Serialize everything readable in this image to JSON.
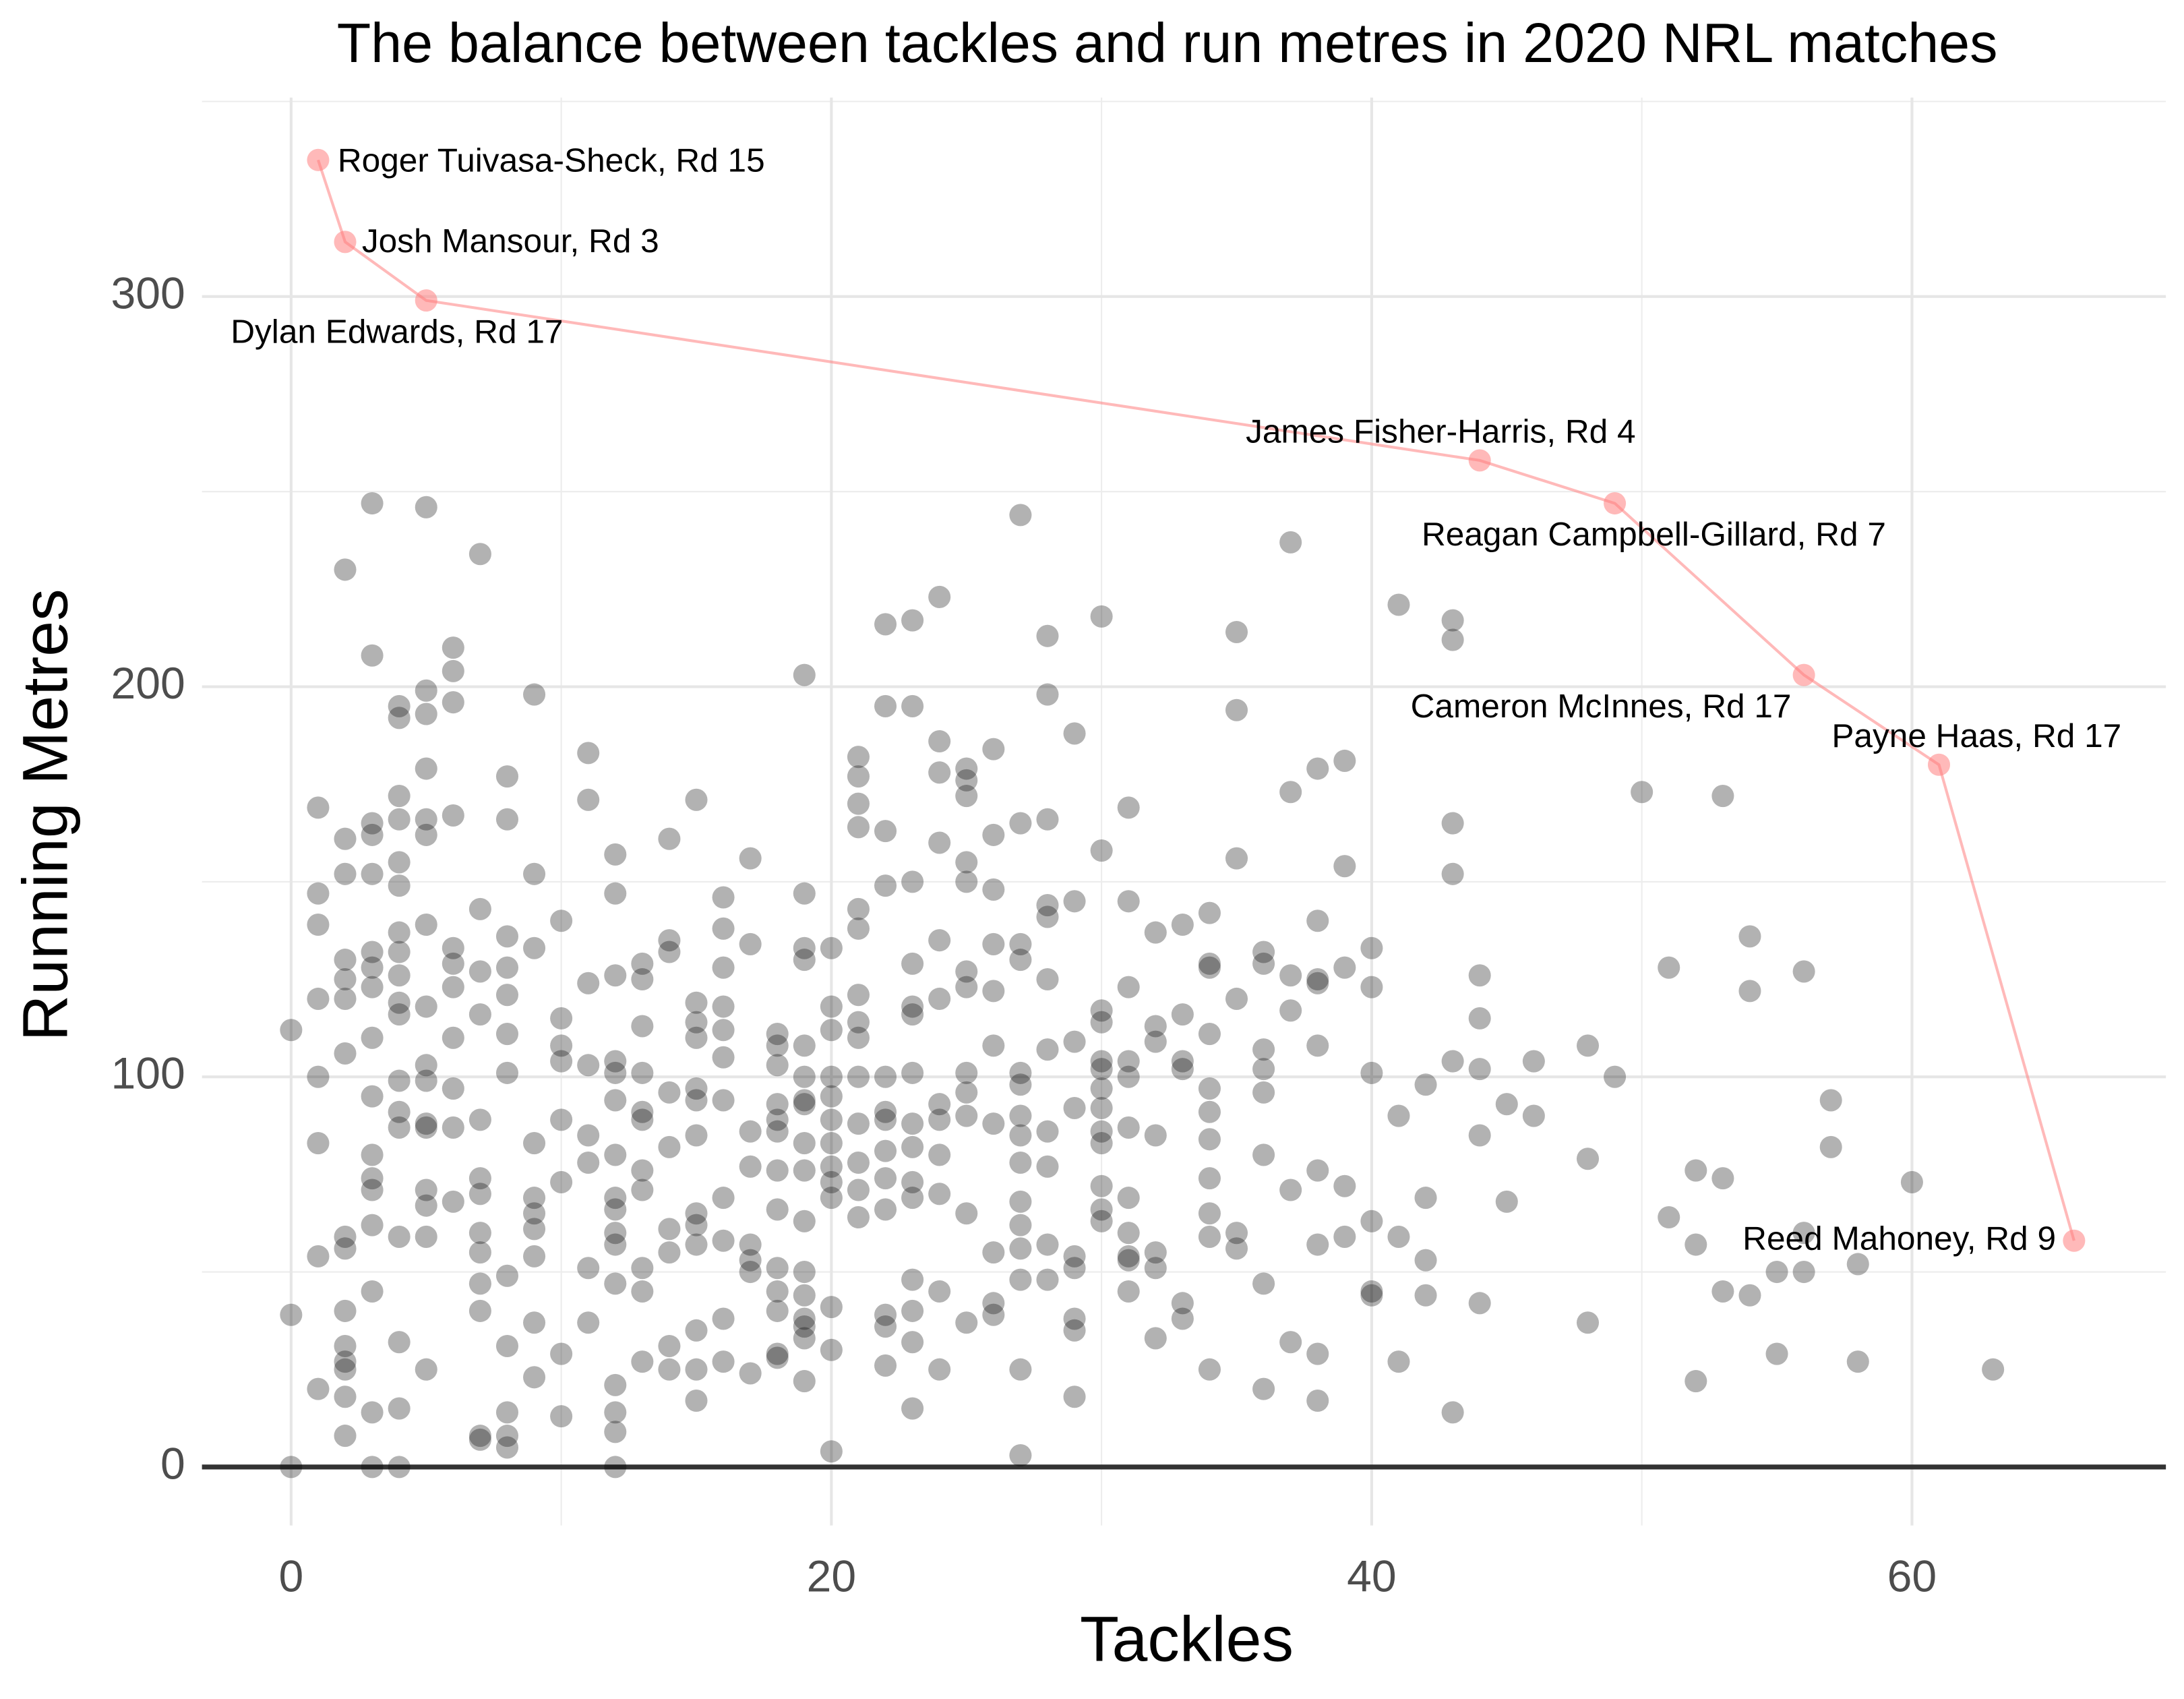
{
  "chart_data": {
    "type": "scatter",
    "title": "The balance between tackles and run metres in 2020 NRL matches",
    "x_label": "Tackles",
    "y_label": "Running Metres",
    "xlim": [
      -3.3,
      69.4
    ],
    "ylim": [
      -15,
      351
    ],
    "xticks": [
      0,
      20,
      40,
      60
    ],
    "yticks": [
      0,
      100,
      200,
      300
    ],
    "x_minor_ticks": [
      10,
      30,
      50
    ],
    "y_minor_ticks": [
      50,
      150,
      250,
      350
    ],
    "grid": true,
    "hline": 0,
    "color": "#000000",
    "x": [
      0,
      0,
      0,
      1,
      1,
      1,
      1,
      1,
      1,
      1,
      1,
      2,
      2,
      2,
      2,
      2,
      2,
      2,
      2,
      2,
      2,
      2,
      2,
      2,
      2,
      2,
      3,
      3,
      3,
      3,
      3,
      3,
      3,
      3,
      3,
      3,
      3,
      3,
      3,
      3,
      3,
      3,
      3,
      4,
      4,
      4,
      4,
      4,
      4,
      4,
      4,
      4,
      4,
      4,
      4,
      4,
      4,
      4,
      4,
      4,
      4,
      5,
      5,
      5,
      5,
      5,
      5,
      5,
      5,
      5,
      5,
      5,
      5,
      5,
      5,
      5,
      5,
      6,
      6,
      6,
      6,
      6,
      6,
      6,
      6,
      6,
      6,
      6,
      7,
      7,
      7,
      7,
      7,
      7,
      7,
      7,
      7,
      7,
      7,
      7,
      7,
      8,
      8,
      8,
      8,
      8,
      8,
      8,
      8,
      8,
      8,
      8,
      8,
      9,
      9,
      9,
      9,
      9,
      9,
      9,
      9,
      9,
      9,
      10,
      10,
      10,
      10,
      10,
      10,
      10,
      10,
      11,
      11,
      11,
      11,
      11,
      11,
      11,
      11,
      12,
      12,
      12,
      12,
      12,
      12,
      12,
      12,
      12,
      12,
      12,
      12,
      12,
      12,
      12,
      12,
      13,
      13,
      13,
      13,
      13,
      13,
      13,
      13,
      13,
      13,
      13,
      14,
      14,
      14,
      14,
      14,
      14,
      14,
      14,
      14,
      15,
      15,
      15,
      15,
      15,
      15,
      15,
      15,
      15,
      15,
      15,
      15,
      15,
      16,
      16,
      16,
      16,
      16,
      16,
      16,
      16,
      16,
      16,
      16,
      17,
      17,
      17,
      17,
      17,
      17,
      17,
      17,
      18,
      18,
      18,
      18,
      18,
      18,
      18,
      18,
      18,
      18,
      18,
      18,
      18,
      19,
      19,
      19,
      19,
      19,
      19,
      19,
      19,
      19,
      19,
      19,
      19,
      19,
      19,
      19,
      19,
      19,
      20,
      20,
      20,
      20,
      20,
      20,
      20,
      20,
      20,
      20,
      20,
      20,
      20,
      21,
      21,
      21,
      21,
      21,
      21,
      21,
      21,
      21,
      21,
      21,
      21,
      21,
      21,
      22,
      22,
      22,
      22,
      22,
      22,
      22,
      22,
      22,
      22,
      22,
      22,
      22,
      23,
      23,
      23,
      23,
      23,
      23,
      23,
      23,
      23,
      23,
      23,
      23,
      23,
      23,
      23,
      24,
      24,
      24,
      24,
      24,
      24,
      24,
      24,
      24,
      24,
      24,
      24,
      25,
      25,
      25,
      25,
      25,
      25,
      25,
      25,
      25,
      25,
      25,
      25,
      26,
      26,
      26,
      26,
      26,
      26,
      26,
      26,
      26,
      26,
      27,
      27,
      27,
      27,
      27,
      27,
      27,
      27,
      27,
      27,
      27,
      27,
      27,
      27,
      27,
      28,
      28,
      28,
      28,
      28,
      28,
      28,
      28,
      28,
      28,
      28,
      29,
      29,
      29,
      29,
      29,
      29,
      29,
      29,
      29,
      30,
      30,
      30,
      30,
      30,
      30,
      30,
      30,
      30,
      30,
      30,
      30,
      30,
      31,
      31,
      31,
      31,
      31,
      31,
      31,
      31,
      31,
      31,
      31,
      32,
      32,
      32,
      32,
      32,
      32,
      32,
      33,
      33,
      33,
      33,
      33,
      33,
      34,
      34,
      34,
      34,
      34,
      34,
      34,
      34,
      34,
      34,
      34,
      35,
      35,
      35,
      35,
      35,
      35,
      36,
      36,
      36,
      36,
      36,
      36,
      36,
      36,
      37,
      37,
      37,
      37,
      37,
      37,
      38,
      38,
      38,
      38,
      38,
      38,
      38,
      38,
      38,
      39,
      39,
      39,
      39,
      39,
      40,
      40,
      40,
      40,
      40,
      40,
      41,
      41,
      41,
      41,
      42,
      42,
      42,
      42,
      43,
      43,
      43,
      43,
      43,
      43,
      44,
      44,
      44,
      44,
      44,
      45,
      45,
      46,
      46,
      48,
      48,
      48,
      49,
      50,
      51,
      51,
      52,
      52,
      52,
      53,
      53,
      53,
      54,
      54,
      54,
      55,
      55,
      56,
      56,
      56,
      57,
      57,
      58,
      58,
      60,
      63
    ],
    "values": [
      112,
      39,
      0,
      169,
      147,
      139,
      120,
      100,
      83,
      54,
      20,
      230,
      161,
      152,
      130,
      125,
      120,
      106,
      59,
      56,
      40,
      31,
      27,
      25,
      18,
      8,
      247,
      208,
      165,
      162,
      152,
      132,
      128,
      123,
      110,
      95,
      80,
      74,
      71,
      62,
      45,
      14,
      0,
      195,
      192,
      172,
      166,
      155,
      149,
      137,
      132,
      126,
      119,
      116,
      99,
      91,
      87,
      59,
      32,
      15,
      0,
      246,
      199,
      193,
      179,
      166,
      162,
      139,
      118,
      103,
      99,
      88,
      87,
      71,
      67,
      59,
      25,
      210,
      204,
      196,
      167,
      133,
      129,
      123,
      110,
      97,
      87,
      68,
      234,
      143,
      127,
      116,
      89,
      74,
      70,
      60,
      55,
      47,
      40,
      8,
      7,
      177,
      166,
      136,
      128,
      121,
      111,
      101,
      49,
      31,
      14,
      8,
      5,
      198,
      152,
      133,
      83,
      69,
      65,
      61,
      54,
      37,
      23,
      140,
      115,
      108,
      104,
      89,
      73,
      29,
      13,
      183,
      171,
      124,
      103,
      85,
      78,
      51,
      37,
      157,
      147,
      126,
      104,
      101,
      94,
      80,
      69,
      66,
      60,
      57,
      47,
      21,
      14,
      9,
      0,
      129,
      125,
      113,
      101,
      91,
      89,
      76,
      71,
      51,
      45,
      27,
      161,
      135,
      132,
      96,
      82,
      61,
      55,
      31,
      25,
      171,
      119,
      114,
      110,
      97,
      94,
      85,
      65,
      62,
      57,
      35,
      25,
      17,
      146,
      138,
      128,
      118,
      112,
      105,
      94,
      69,
      58,
      38,
      27,
      156,
      134,
      86,
      77,
      57,
      53,
      50,
      24,
      111,
      108,
      103,
      93,
      89,
      86,
      76,
      66,
      51,
      45,
      40,
      29,
      28,
      203,
      147,
      133,
      130,
      108,
      100,
      94,
      93,
      83,
      76,
      63,
      50,
      44,
      38,
      36,
      33,
      22,
      133,
      118,
      112,
      100,
      95,
      89,
      83,
      77,
      73,
      69,
      41,
      30,
      4,
      182,
      177,
      170,
      164,
      143,
      138,
      121,
      114,
      110,
      100,
      88,
      78,
      71,
      64,
      216,
      195,
      163,
      149,
      100,
      91,
      89,
      81,
      74,
      66,
      39,
      36,
      26,
      217,
      195,
      150,
      129,
      118,
      116,
      101,
      88,
      82,
      73,
      69,
      48,
      40,
      32,
      15,
      223,
      186,
      178,
      160,
      135,
      120,
      93,
      89,
      80,
      70,
      45,
      25,
      179,
      176,
      172,
      155,
      150,
      127,
      123,
      101,
      96,
      90,
      65,
      37,
      184,
      162,
      148,
      134,
      122,
      108,
      88,
      55,
      42,
      39,
      244,
      165,
      134,
      130,
      101,
      98,
      90,
      85,
      78,
      68,
      62,
      56,
      48,
      25,
      3,
      213,
      198,
      166,
      144,
      141,
      125,
      107,
      86,
      77,
      57,
      48,
      188,
      145,
      109,
      92,
      54,
      51,
      38,
      35,
      18,
      218,
      158,
      117,
      114,
      104,
      102,
      97,
      92,
      86,
      83,
      72,
      66,
      63,
      169,
      145,
      123,
      104,
      100,
      87,
      69,
      60,
      54,
      53,
      45,
      137,
      113,
      109,
      85,
      55,
      51,
      33,
      139,
      116,
      104,
      102,
      42,
      38,
      142,
      129,
      128,
      111,
      97,
      91,
      84,
      74,
      65,
      59,
      25,
      214,
      194,
      156,
      120,
      60,
      56,
      132,
      129,
      107,
      102,
      96,
      80,
      47,
      20,
      237,
      173,
      126,
      117,
      71,
      32,
      179,
      140,
      125,
      124,
      108,
      76,
      57,
      29,
      17,
      181,
      154,
      128,
      72,
      59,
      133,
      123,
      101,
      63,
      45,
      44,
      221,
      90,
      59,
      27,
      98,
      69,
      53,
      44,
      217,
      212,
      165,
      152,
      104,
      14,
      126,
      115,
      102,
      85,
      42,
      93,
      68,
      104,
      90,
      108,
      79,
      37,
      100,
      173,
      128,
      64,
      76,
      57,
      22,
      172,
      74,
      45,
      136,
      122,
      44,
      50,
      29,
      127,
      60,
      50,
      94,
      82,
      52,
      27,
      73,
      25
    ],
    "frontier": {
      "color": "#ff8080",
      "x": [
        1,
        2,
        5,
        44,
        49,
        56,
        61,
        66
      ],
      "values": [
        335,
        314,
        299,
        258,
        247,
        203,
        180,
        58
      ],
      "labels": [
        "Roger Tuivasa-Sheck, Rd 15",
        "Josh Mansour, Rd 3",
        "Dylan Edwards, Rd 17",
        "James Fisher-Harris, Rd 4",
        "Reagan Campbell-Gillard, Rd 7",
        "Cameron McInnes, Rd 17",
        "Payne Haas, Rd 17",
        "Reed Mahoney, Rd 9"
      ]
    }
  }
}
